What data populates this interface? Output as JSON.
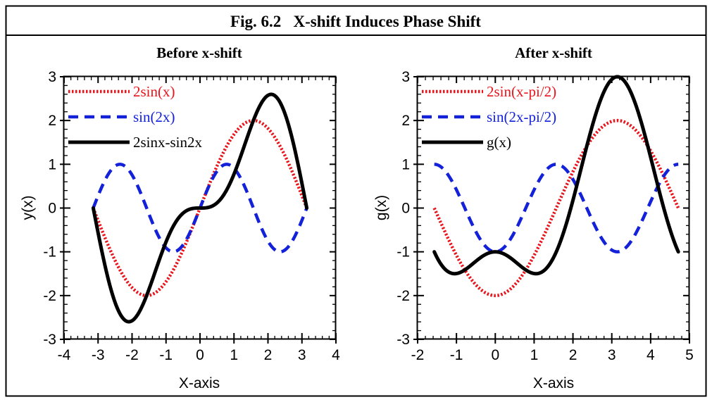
{
  "figure": {
    "title": "Fig. 6.2   X-shift Induces Phase Shift"
  },
  "colors": {
    "series_red": "#e8151c",
    "series_blue": "#1321d9",
    "series_black": "#000000"
  },
  "chart_data": [
    {
      "type": "line",
      "title": "Before x-shift",
      "xlabel": "X-axis",
      "ylabel": "y(x)",
      "xlim": [
        -4,
        4
      ],
      "ylim": [
        -3,
        3
      ],
      "xticks": [
        "-4",
        "-3",
        "-2",
        "-1",
        "0",
        "1",
        "2",
        "3",
        "4"
      ],
      "yticks": [
        "3",
        "2",
        "1",
        "0",
        "-1",
        "-2",
        "-3"
      ],
      "legend_position": "top-left",
      "x_domain": [
        -3.1416,
        3.1416
      ],
      "series": [
        {
          "name": "2sin(x)",
          "expr": "2*sin(x)",
          "color": "#e8151c",
          "style": "dotted"
        },
        {
          "name": "sin(2x)",
          "expr": "sin(2*x)",
          "color": "#1321d9",
          "style": "dashed"
        },
        {
          "name": "2sinx-sin2x",
          "expr": "2*sin(x)-sin(2*x)",
          "color": "#000000",
          "style": "solid"
        }
      ]
    },
    {
      "type": "line",
      "title": "After x-shift",
      "xlabel": "X-axis",
      "ylabel": "g(x)",
      "xlim": [
        -2,
        5
      ],
      "ylim": [
        -3,
        3
      ],
      "xticks": [
        "-2",
        "-1",
        "0",
        "1",
        "2",
        "3",
        "4",
        "5"
      ],
      "yticks": [
        "3",
        "2",
        "1",
        "0",
        "-1",
        "-2",
        "-3"
      ],
      "legend_position": "top-left",
      "x_domain": [
        -1.5708,
        4.7124
      ],
      "series": [
        {
          "name": "2sin(x-pi/2)",
          "expr": "2*sin(x-pi/2)",
          "color": "#e8151c",
          "style": "dotted"
        },
        {
          "name": "sin(2x-pi/2)",
          "expr": "sin(2*x-pi/2)",
          "color": "#1321d9",
          "style": "dashed"
        },
        {
          "name": "g(x)",
          "expr": "2*sin(x-pi/2)-sin(2*x-pi/2)",
          "color": "#000000",
          "style": "solid"
        }
      ]
    }
  ]
}
